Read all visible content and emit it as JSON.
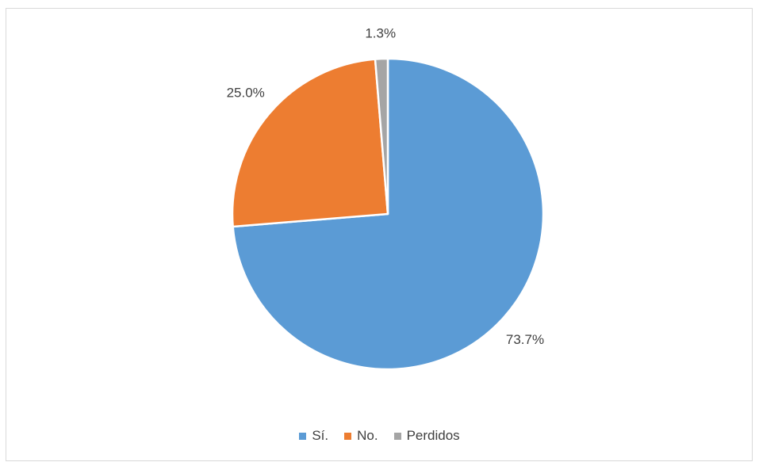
{
  "chart_data": {
    "type": "pie",
    "title": "",
    "slices": [
      {
        "label": "Sí.",
        "value": 73.7,
        "value_label": "73.7%",
        "color": "#5B9BD5"
      },
      {
        "label": "No.",
        "value": 25.0,
        "value_label": "25.0%",
        "color": "#ED7D31"
      },
      {
        "label": "Perdidos",
        "value": 1.3,
        "value_label": "1.3%",
        "color": "#A5A5A5"
      }
    ],
    "legend": {
      "placement": "bottom",
      "items": [
        "Sí.",
        "No.",
        "Perdidos"
      ]
    }
  }
}
